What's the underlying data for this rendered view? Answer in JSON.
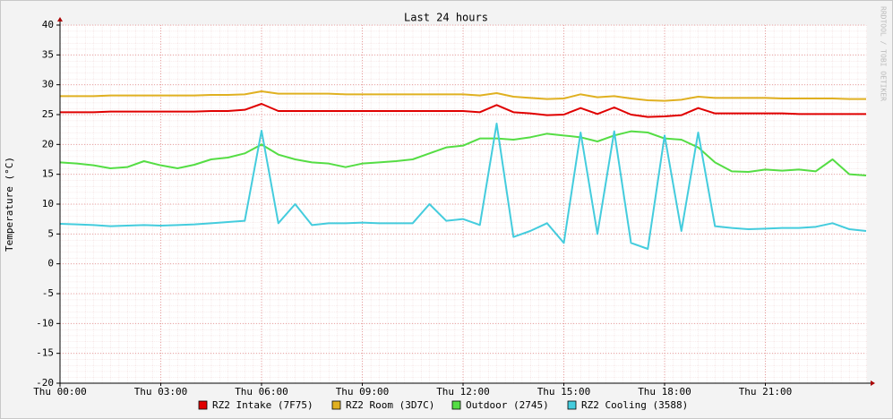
{
  "chart_data": {
    "type": "line",
    "title": "Last 24 hours",
    "ylabel": "Temperature (°C)",
    "watermark": "RRDTOOL / TOBI OETIKER",
    "x": [
      0,
      0.5,
      1,
      1.5,
      2,
      2.5,
      3,
      3.5,
      4,
      4.5,
      5,
      5.5,
      6,
      6.5,
      7,
      7.5,
      8,
      8.5,
      9,
      9.5,
      10,
      10.5,
      11,
      11.5,
      12,
      12.5,
      13,
      13.5,
      14,
      14.5,
      15,
      15.5,
      16,
      16.5,
      17,
      17.5,
      18,
      18.5,
      19,
      19.5,
      20,
      20.5,
      21,
      21.5,
      22,
      22.5,
      23,
      23.5,
      24
    ],
    "xlim": [
      0,
      24
    ],
    "xticks": [
      {
        "value": 0,
        "label": "Thu 00:00"
      },
      {
        "value": 3,
        "label": "Thu 03:00"
      },
      {
        "value": 6,
        "label": "Thu 06:00"
      },
      {
        "value": 9,
        "label": "Thu 09:00"
      },
      {
        "value": 12,
        "label": "Thu 12:00"
      },
      {
        "value": 15,
        "label": "Thu 15:00"
      },
      {
        "value": 18,
        "label": "Thu 18:00"
      },
      {
        "value": 21,
        "label": "Thu 21:00"
      }
    ],
    "ylim": [
      -20,
      40
    ],
    "yticks": [
      -20,
      -15,
      -10,
      -5,
      0,
      5,
      10,
      15,
      20,
      25,
      30,
      35,
      40
    ],
    "grid": true,
    "series": [
      {
        "name": "RZ2 Intake (7F75)",
        "color": "#e00000",
        "values": [
          25.4,
          25.4,
          25.4,
          25.5,
          25.5,
          25.5,
          25.5,
          25.5,
          25.5,
          25.6,
          25.6,
          25.8,
          26.8,
          25.6,
          25.6,
          25.6,
          25.6,
          25.6,
          25.6,
          25.6,
          25.6,
          25.6,
          25.6,
          25.6,
          25.6,
          25.4,
          26.6,
          25.4,
          25.2,
          24.9,
          25.0,
          26.1,
          25.1,
          26.2,
          25.0,
          24.6,
          24.7,
          24.9,
          26.1,
          25.2,
          25.2,
          25.2,
          25.2,
          25.2,
          25.1,
          25.1,
          25.1,
          25.1,
          25.1
        ]
      },
      {
        "name": "RZ2 Room (3D7C)",
        "color": "#e0b020",
        "values": [
          28.1,
          28.1,
          28.1,
          28.2,
          28.2,
          28.2,
          28.2,
          28.2,
          28.2,
          28.3,
          28.3,
          28.4,
          28.9,
          28.5,
          28.5,
          28.5,
          28.5,
          28.4,
          28.4,
          28.4,
          28.4,
          28.4,
          28.4,
          28.4,
          28.4,
          28.2,
          28.6,
          28.0,
          27.8,
          27.6,
          27.7,
          28.4,
          27.9,
          28.1,
          27.7,
          27.4,
          27.3,
          27.5,
          28.0,
          27.8,
          27.8,
          27.8,
          27.8,
          27.7,
          27.7,
          27.7,
          27.7,
          27.6,
          27.6
        ]
      },
      {
        "name": "Outdoor (2745)",
        "color": "#55dd44",
        "values": [
          17,
          16.8,
          16.5,
          16,
          16.2,
          17.2,
          16.5,
          16,
          16.6,
          17.5,
          17.8,
          18.5,
          20,
          18.3,
          17.5,
          17,
          16.8,
          16.2,
          16.8,
          17,
          17.2,
          17.5,
          18.5,
          19.5,
          19.8,
          21,
          21,
          20.8,
          21.2,
          21.8,
          21.5,
          21.2,
          20.5,
          21.5,
          22.2,
          22,
          21,
          20.8,
          19.5,
          17,
          15.5,
          15.4,
          15.8,
          15.6,
          15.8,
          15.5,
          17.5,
          15,
          14.8
        ]
      },
      {
        "name": "RZ2 Cooling (3588)",
        "color": "#44ccdd",
        "values": [
          6.7,
          6.6,
          6.5,
          6.3,
          6.4,
          6.5,
          6.4,
          6.5,
          6.6,
          6.8,
          7.0,
          7.2,
          22.3,
          6.8,
          10,
          6.5,
          6.8,
          6.8,
          6.9,
          6.8,
          6.8,
          6.8,
          10,
          7.2,
          7.5,
          6.5,
          23.5,
          4.5,
          5.5,
          6.8,
          3.5,
          22,
          5.0,
          22.2,
          3.5,
          2.5,
          21.5,
          5.5,
          22,
          6.3,
          6.0,
          5.8,
          5.9,
          6.0,
          6.0,
          6.2,
          6.8,
          5.8,
          5.5
        ]
      }
    ]
  }
}
